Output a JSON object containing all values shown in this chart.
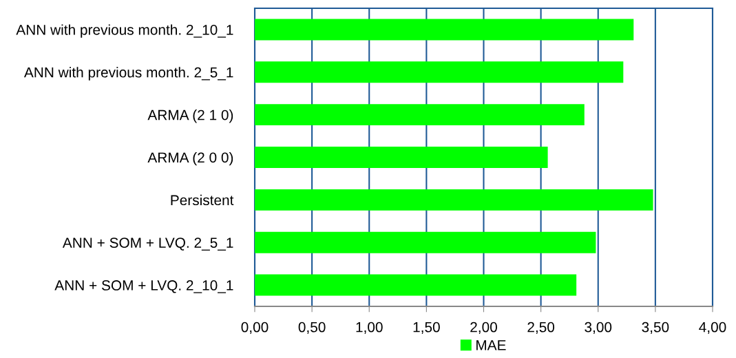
{
  "chart_data": {
    "type": "bar",
    "orientation": "horizontal",
    "categories": [
      "ANN with previous month. 2_10_1",
      "ANN with previous month. 2_5_1",
      "ARMA (2 1 0)",
      "ARMA (2 0 0)",
      "Persistent",
      "ANN + SOM + LVQ. 2_5_1",
      "ANN + SOM + LVQ. 2_10_1"
    ],
    "series": [
      {
        "name": "MAE",
        "color": "#00ff00",
        "values": [
          3.31,
          3.22,
          2.88,
          2.56,
          3.48,
          2.98,
          2.81
        ]
      }
    ],
    "xlim": [
      0,
      4
    ],
    "xticks": [
      {
        "value": 0,
        "label": "0,00"
      },
      {
        "value": 0.5,
        "label": "0,50"
      },
      {
        "value": 1,
        "label": "1,00"
      },
      {
        "value": 1.5,
        "label": "1,50"
      },
      {
        "value": 2,
        "label": "2,00"
      },
      {
        "value": 2.5,
        "label": "2,50"
      },
      {
        "value": 3,
        "label": "3,00"
      },
      {
        "value": 3.5,
        "label": "3,50"
      },
      {
        "value": 4,
        "label": "4,00"
      }
    ],
    "grid": "x",
    "legend": "bottom"
  }
}
